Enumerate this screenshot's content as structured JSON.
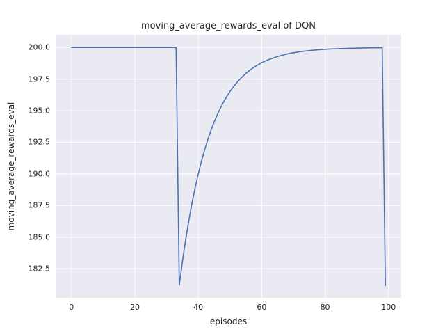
{
  "chart_data": {
    "type": "line",
    "title": "moving_average_rewards_eval of DQN",
    "xlabel": "episodes",
    "ylabel": "moving_average_rewards_eval",
    "legend": null,
    "grid": true,
    "xlim": [
      -5,
      104
    ],
    "ylim": [
      180.2,
      201.0
    ],
    "xticks": [
      0,
      20,
      40,
      60,
      80,
      100
    ],
    "xticklabels": [
      "0",
      "20",
      "40",
      "60",
      "80",
      "100"
    ],
    "yticks": [
      182.5,
      185.0,
      187.5,
      190.0,
      192.5,
      195.0,
      197.5,
      200.0
    ],
    "yticklabels": [
      "182.5",
      "185.0",
      "187.5",
      "190.0",
      "192.5",
      "195.0",
      "197.5",
      "200.0"
    ],
    "line_color": "#4c72b0",
    "line_width": 1.6,
    "axes_bg": "#eaeaf2",
    "grid_color": "#ffffff",
    "text_color": "#262626",
    "x": [
      0,
      1,
      2,
      3,
      4,
      5,
      6,
      7,
      8,
      9,
      10,
      11,
      12,
      13,
      14,
      15,
      16,
      17,
      18,
      19,
      20,
      21,
      22,
      23,
      24,
      25,
      26,
      27,
      28,
      29,
      30,
      31,
      32,
      33,
      34,
      35,
      36,
      37,
      38,
      39,
      40,
      41,
      42,
      43,
      44,
      45,
      46,
      47,
      48,
      49,
      50,
      51,
      52,
      53,
      54,
      55,
      56,
      57,
      58,
      59,
      60,
      61,
      62,
      63,
      64,
      65,
      66,
      67,
      68,
      69,
      70,
      71,
      72,
      73,
      74,
      75,
      76,
      77,
      78,
      79,
      80,
      81,
      82,
      83,
      84,
      85,
      86,
      87,
      88,
      89,
      90,
      91,
      92,
      93,
      94,
      95,
      96,
      97,
      98,
      99
    ],
    "y": [
      200,
      200,
      200,
      200,
      200,
      200,
      200,
      200,
      200,
      200,
      200,
      200,
      200,
      200,
      200,
      200,
      200,
      200,
      200,
      200,
      200,
      200,
      200,
      200,
      200,
      200,
      200,
      200,
      200,
      200,
      200,
      200,
      200,
      200,
      181.2,
      183.08,
      184.77,
      186.29,
      187.67,
      188.9,
      190.01,
      191.01,
      191.91,
      192.72,
      193.45,
      194.1,
      194.69,
      195.22,
      195.7,
      196.13,
      196.52,
      196.86,
      197.18,
      197.46,
      197.71,
      197.94,
      198.15,
      198.33,
      198.5,
      198.65,
      198.79,
      198.91,
      199.02,
      199.11,
      199.2,
      199.28,
      199.35,
      199.42,
      199.48,
      199.53,
      199.58,
      199.62,
      199.66,
      199.69,
      199.72,
      199.75,
      199.77,
      199.8,
      199.82,
      199.84,
      199.85,
      199.87,
      199.88,
      199.89,
      199.9,
      199.91,
      199.92,
      199.93,
      199.94,
      199.94,
      199.95,
      199.95,
      199.96,
      199.96,
      199.97,
      199.97,
      199.97,
      199.98,
      199.98,
      181.18
    ]
  }
}
